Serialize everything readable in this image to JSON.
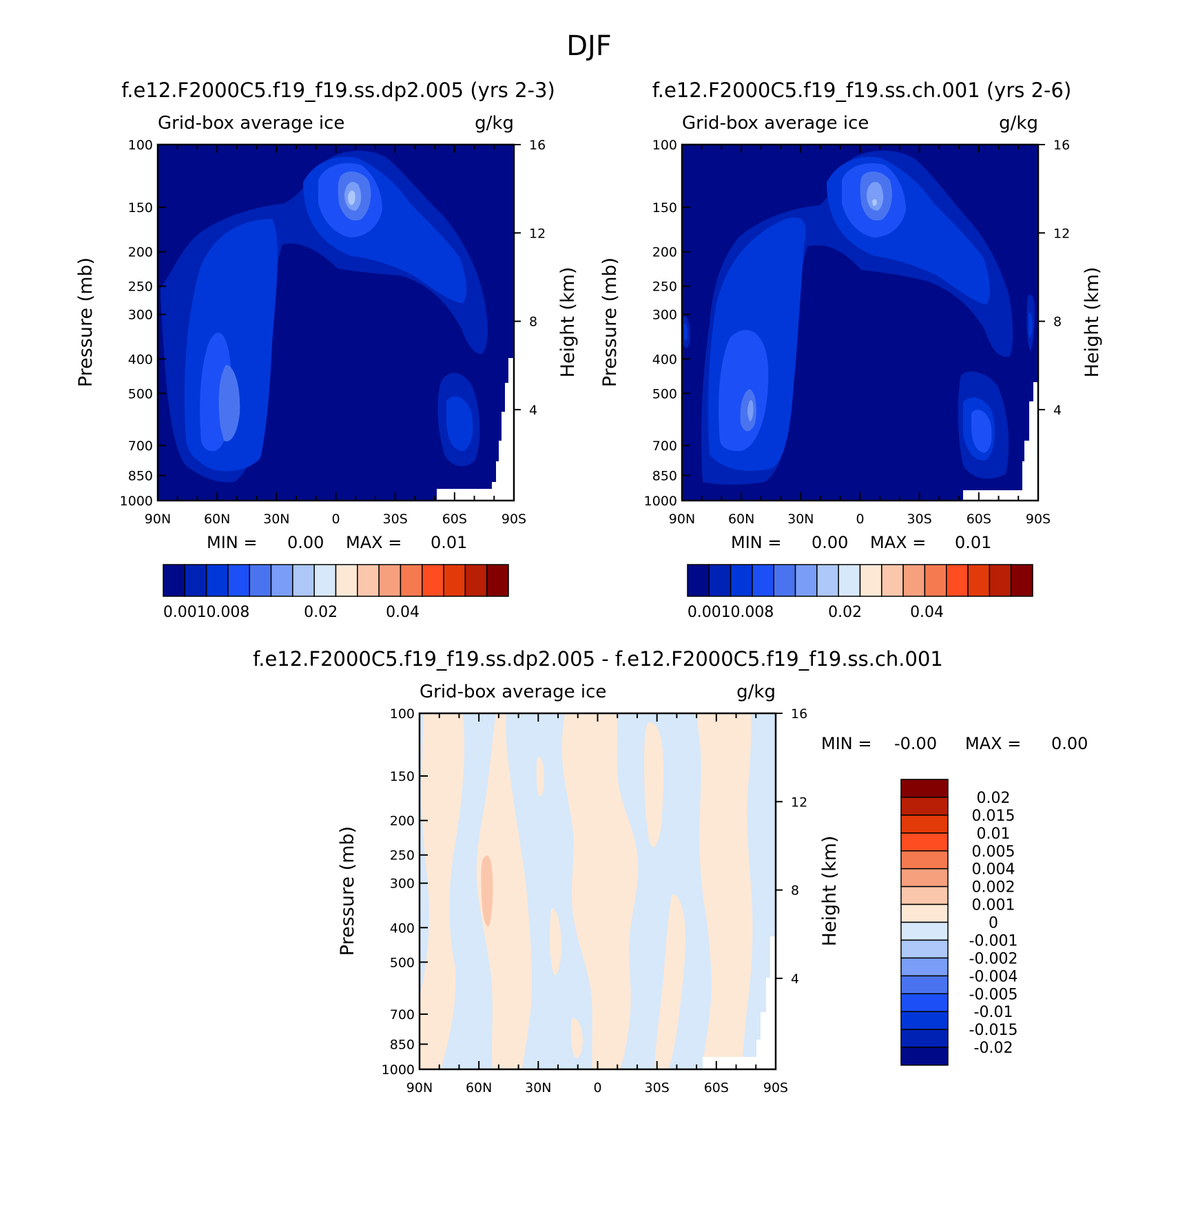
{
  "figure_title": "DJF",
  "colors": {
    "seq": [
      "#000a88",
      "#0022b4",
      "#0137d8",
      "#1c50f6",
      "#4a74ef",
      "#7a9df7",
      "#adc8f9",
      "#d6e8fa",
      "#fde8d6",
      "#fbc7ac",
      "#f7a07e",
      "#f67a50",
      "#fd4d21",
      "#e33a0a",
      "#b81f04",
      "#820000"
    ],
    "div": [
      "#000a88",
      "#0022b4",
      "#0137d8",
      "#1c50f6",
      "#4a74ef",
      "#7a9df7",
      "#adc8f9",
      "#d6e8fa",
      "#fde8d6",
      "#fbc7ac",
      "#f7a07e",
      "#f67a50",
      "#fd4d21",
      "#e33a0a",
      "#b81f04",
      "#820000"
    ]
  },
  "chart_data": [
    {
      "type": "heatmap",
      "title": "f.e12.F2000C5.f19_f19.ss.dp2.005 (yrs 2-3)",
      "left_label": "Grid-box average ice",
      "right_label": "g/kg",
      "ylabel": "Pressure (mb)",
      "ylabel2": "Height (km)",
      "y_ticks": [
        "100",
        "150",
        "200",
        "250",
        "300",
        "400",
        "500",
        "700",
        "850",
        "1000"
      ],
      "y2_ticks": [
        "16",
        "12",
        "8",
        "4"
      ],
      "x_ticks": [
        "90N",
        "60N",
        "30N",
        "0",
        "30S",
        "60S",
        "90S"
      ],
      "min_label": "MIN =",
      "min_value": "0.00",
      "max_label": "MAX =",
      "max_value": "0.01",
      "colorbar_labels": [
        "0.001",
        "0.008",
        "0.02",
        "0.04"
      ]
    },
    {
      "type": "heatmap",
      "title": "f.e12.F2000C5.f19_f19.ss.ch.001 (yrs 2-6)",
      "left_label": "Grid-box average ice",
      "right_label": "g/kg",
      "ylabel": "Pressure (mb)",
      "ylabel2": "Height (km)",
      "y_ticks": [
        "100",
        "150",
        "200",
        "250",
        "300",
        "400",
        "500",
        "700",
        "850",
        "1000"
      ],
      "y2_ticks": [
        "16",
        "12",
        "8",
        "4"
      ],
      "x_ticks": [
        "90N",
        "60N",
        "30N",
        "0",
        "30S",
        "60S",
        "90S"
      ],
      "min_label": "MIN =",
      "min_value": "0.00",
      "max_label": "MAX =",
      "max_value": "0.01",
      "colorbar_labels": [
        "0.001",
        "0.008",
        "0.02",
        "0.04"
      ]
    },
    {
      "type": "heatmap",
      "title": "f.e12.F2000C5.f19_f19.ss.dp2.005 - f.e12.F2000C5.f19_f19.ss.ch.001",
      "left_label": "Grid-box average ice",
      "right_label": "g/kg",
      "ylabel": "Pressure (mb)",
      "ylabel2": "Height (km)",
      "y_ticks": [
        "100",
        "150",
        "200",
        "250",
        "300",
        "400",
        "500",
        "700",
        "850",
        "1000"
      ],
      "y2_ticks": [
        "16",
        "12",
        "8",
        "4"
      ],
      "x_ticks": [
        "90N",
        "60N",
        "30N",
        "0",
        "30S",
        "60S",
        "90S"
      ],
      "min_label": "MIN =",
      "min_value": "-0.00",
      "max_label": "MAX =",
      "max_value": "0.00",
      "colorbar_labels": [
        "0.02",
        "0.015",
        "0.01",
        "0.005",
        "0.004",
        "0.002",
        "0.001",
        "0",
        "-0.001",
        "-0.002",
        "-0.004",
        "-0.005",
        "-0.01",
        "-0.015",
        "-0.02"
      ]
    }
  ]
}
